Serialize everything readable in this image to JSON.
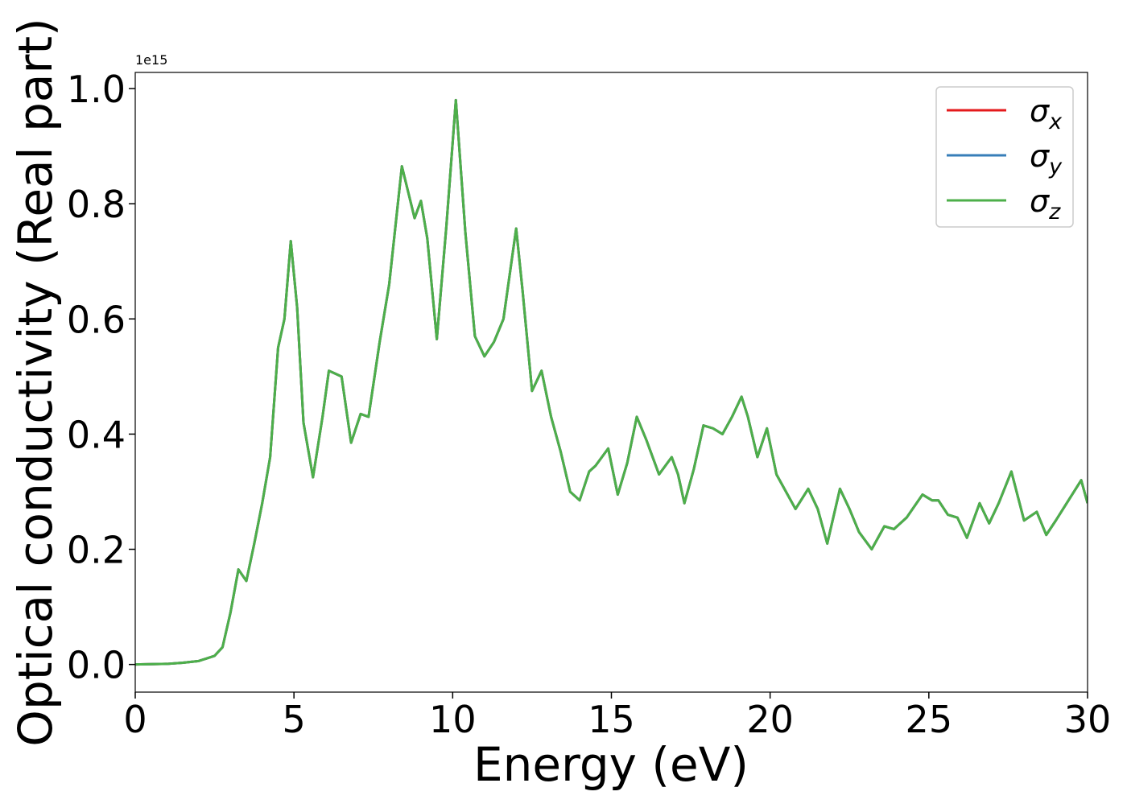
{
  "chart_data": {
    "type": "line",
    "xlabel": "Energy (eV)",
    "ylabel": "Optical conductivity (Real part)",
    "y_offset_text": "1e15",
    "x": [
      0,
      1,
      1.5,
      2,
      2.5,
      2.75,
      3.0,
      3.25,
      3.5,
      3.75,
      4.0,
      4.25,
      4.5,
      4.7,
      4.9,
      5.1,
      5.3,
      5.6,
      5.9,
      6.1,
      6.3,
      6.5,
      6.8,
      7.1,
      7.35,
      7.7,
      8.0,
      8.4,
      8.8,
      9.0,
      9.2,
      9.5,
      9.8,
      10.1,
      10.4,
      10.7,
      11.0,
      11.3,
      11.6,
      12.0,
      12.2,
      12.5,
      12.8,
      13.1,
      13.4,
      13.7,
      14.0,
      14.3,
      14.5,
      14.9,
      15.2,
      15.5,
      15.8,
      16.1,
      16.5,
      16.9,
      17.1,
      17.3,
      17.6,
      17.9,
      18.2,
      18.5,
      18.8,
      19.1,
      19.3,
      19.6,
      19.9,
      20.2,
      20.5,
      20.8,
      21.2,
      21.5,
      21.8,
      22.2,
      22.5,
      22.8,
      23.2,
      23.6,
      23.9,
      24.3,
      24.8,
      25.1,
      25.3,
      25.6,
      25.9,
      26.2,
      26.6,
      26.9,
      27.2,
      27.6,
      28.0,
      28.4,
      28.7,
      29.0,
      29.4,
      29.8,
      30
    ],
    "series": [
      {
        "name": "σx",
        "color": "#e41a1c",
        "values": [
          0,
          0.001,
          0.003,
          0.006,
          0.015,
          0.03,
          0.09,
          0.165,
          0.145,
          0.21,
          0.28,
          0.36,
          0.55,
          0.6,
          0.735,
          0.62,
          0.42,
          0.325,
          0.43,
          0.51,
          0.505,
          0.5,
          0.385,
          0.435,
          0.43,
          0.56,
          0.66,
          0.865,
          0.775,
          0.805,
          0.74,
          0.565,
          0.76,
          0.98,
          0.75,
          0.57,
          0.535,
          0.56,
          0.6,
          0.757,
          0.65,
          0.475,
          0.51,
          0.43,
          0.37,
          0.3,
          0.285,
          0.335,
          0.345,
          0.375,
          0.295,
          0.35,
          0.43,
          0.39,
          0.33,
          0.36,
          0.33,
          0.28,
          0.34,
          0.415,
          0.41,
          0.4,
          0.43,
          0.465,
          0.43,
          0.36,
          0.41,
          0.33,
          0.3,
          0.27,
          0.305,
          0.27,
          0.21,
          0.305,
          0.27,
          0.23,
          0.2,
          0.24,
          0.235,
          0.255,
          0.295,
          0.285,
          0.285,
          0.26,
          0.255,
          0.22,
          0.28,
          0.245,
          0.28,
          0.335,
          0.25,
          0.265,
          0.225,
          0.25,
          0.285,
          0.32,
          0.28
        ]
      },
      {
        "name": "σy",
        "color": "#377eb8",
        "values": [
          0,
          0.001,
          0.003,
          0.006,
          0.015,
          0.03,
          0.09,
          0.165,
          0.145,
          0.21,
          0.28,
          0.36,
          0.55,
          0.6,
          0.735,
          0.62,
          0.42,
          0.325,
          0.43,
          0.51,
          0.505,
          0.5,
          0.385,
          0.435,
          0.43,
          0.56,
          0.66,
          0.865,
          0.775,
          0.805,
          0.74,
          0.565,
          0.76,
          0.98,
          0.75,
          0.57,
          0.535,
          0.56,
          0.6,
          0.757,
          0.65,
          0.475,
          0.51,
          0.43,
          0.37,
          0.3,
          0.285,
          0.335,
          0.345,
          0.375,
          0.295,
          0.35,
          0.43,
          0.39,
          0.33,
          0.36,
          0.33,
          0.28,
          0.34,
          0.415,
          0.41,
          0.4,
          0.43,
          0.465,
          0.43,
          0.36,
          0.41,
          0.33,
          0.3,
          0.27,
          0.305,
          0.27,
          0.21,
          0.305,
          0.27,
          0.23,
          0.2,
          0.24,
          0.235,
          0.255,
          0.295,
          0.285,
          0.285,
          0.26,
          0.255,
          0.22,
          0.28,
          0.245,
          0.28,
          0.335,
          0.25,
          0.265,
          0.225,
          0.25,
          0.285,
          0.32,
          0.28
        ]
      },
      {
        "name": "σz",
        "color": "#4daf4a",
        "values": [
          0,
          0.001,
          0.003,
          0.006,
          0.015,
          0.03,
          0.09,
          0.165,
          0.145,
          0.21,
          0.28,
          0.36,
          0.55,
          0.6,
          0.735,
          0.62,
          0.42,
          0.325,
          0.43,
          0.51,
          0.505,
          0.5,
          0.385,
          0.435,
          0.43,
          0.56,
          0.66,
          0.865,
          0.775,
          0.805,
          0.74,
          0.565,
          0.76,
          0.98,
          0.75,
          0.57,
          0.535,
          0.56,
          0.6,
          0.757,
          0.65,
          0.475,
          0.51,
          0.43,
          0.37,
          0.3,
          0.285,
          0.335,
          0.345,
          0.375,
          0.295,
          0.35,
          0.43,
          0.39,
          0.33,
          0.36,
          0.33,
          0.28,
          0.34,
          0.415,
          0.41,
          0.4,
          0.43,
          0.465,
          0.43,
          0.36,
          0.41,
          0.33,
          0.3,
          0.27,
          0.305,
          0.27,
          0.21,
          0.305,
          0.27,
          0.23,
          0.2,
          0.24,
          0.235,
          0.255,
          0.295,
          0.285,
          0.285,
          0.26,
          0.255,
          0.22,
          0.28,
          0.245,
          0.28,
          0.335,
          0.25,
          0.265,
          0.225,
          0.25,
          0.285,
          0.32,
          0.28
        ]
      }
    ],
    "xlim": [
      0,
      30
    ],
    "xticks": [
      0,
      5,
      10,
      15,
      20,
      25,
      30
    ],
    "ylim": [
      -0.048,
      1.028
    ],
    "yticks": [
      {
        "value": 0,
        "label": "0.0"
      },
      0.2,
      0.4,
      0.6,
      0.8,
      {
        "value": 1,
        "label": "1.0"
      }
    ],
    "legend": "upper right",
    "grid": false
  }
}
